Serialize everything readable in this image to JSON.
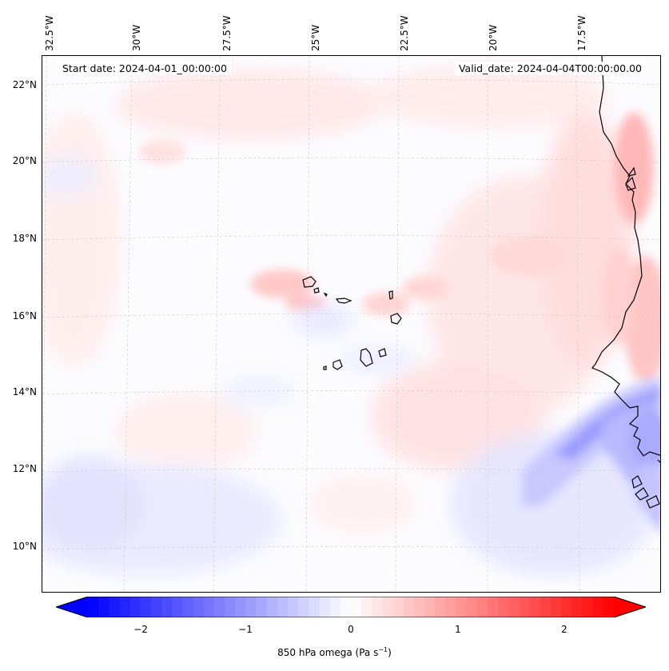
{
  "map": {
    "start_date": "Start date: 2024-04-01_00:00:00",
    "valid_date": "Valid_date: 2024-04-04T00:00:00.00",
    "variable_label": "850 hPa omega (Pa s",
    "variable_unit_exp": "−1",
    "variable_label_close": ")",
    "longitude_ticks": [
      "32.5°W",
      "30°W",
      "27.5°W",
      "25°W",
      "22.5°W",
      "20°W",
      "17.5°W"
    ],
    "latitude_ticks": [
      "22°N",
      "20°N",
      "18°N",
      "16°N",
      "14°N",
      "12°N",
      "10°N"
    ]
  },
  "colorbar": {
    "ticks": [
      "−2",
      "−1",
      "0",
      "1",
      "2"
    ],
    "range": [
      -2.5,
      2.5
    ],
    "negative_color": "#0000ff",
    "positive_color": "#ff0000",
    "zero_color": "#ffffff"
  }
}
